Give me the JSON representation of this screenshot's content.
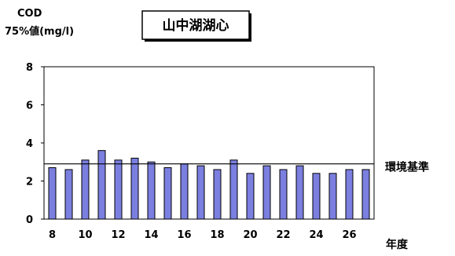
{
  "chart_data": {
    "type": "bar",
    "title": "山中湖湖心",
    "ylabel_line1": "COD",
    "ylabel_line2": "75%値(mg/l)",
    "xlabel": "年度",
    "x": [
      8,
      9,
      10,
      11,
      12,
      13,
      14,
      15,
      16,
      17,
      18,
      19,
      20,
      21,
      22,
      23,
      24,
      25,
      26,
      27
    ],
    "x_tick_labels": [
      "8",
      "10",
      "12",
      "14",
      "16",
      "18",
      "20",
      "22",
      "24",
      "26"
    ],
    "x_tick_values": [
      8,
      10,
      12,
      14,
      16,
      18,
      20,
      22,
      24,
      26
    ],
    "values": [
      2.7,
      2.6,
      3.1,
      3.6,
      3.1,
      3.2,
      3.0,
      2.7,
      2.9,
      2.8,
      2.6,
      3.1,
      2.4,
      2.8,
      2.6,
      2.8,
      2.4,
      2.4,
      2.6,
      2.6
    ],
    "ylim": [
      0,
      8
    ],
    "y_ticks": [
      "0",
      "2",
      "4",
      "6",
      "8"
    ],
    "reference_line": {
      "value": 2.9,
      "label": "環境基準"
    },
    "bar_color": "#7b7fe0",
    "grid": false
  }
}
